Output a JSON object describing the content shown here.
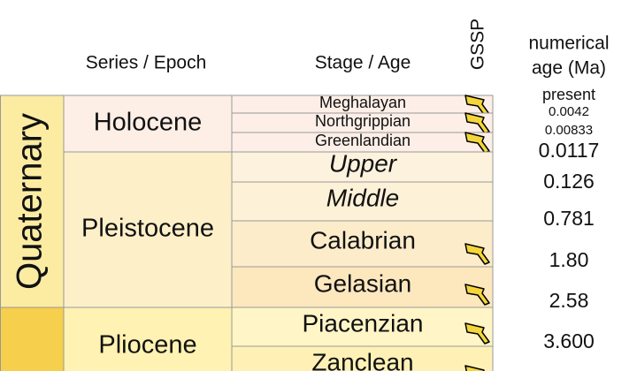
{
  "headers": {
    "series_epoch": "Series / Epoch",
    "stage_age": "Stage / Age",
    "gssp": "GSSP",
    "numerical_age": [
      "numerical",
      "age (Ma)"
    ]
  },
  "periods": [
    "Quaternary"
  ],
  "epochs": [
    "Holocene",
    "Pleistocene",
    "Pliocene"
  ],
  "stages": [
    "Meghalayan",
    "Northgrippian",
    "Greenlandian",
    "Upper",
    "Middle",
    "Calabrian",
    "Gelasian",
    "Piacenzian",
    "Zanclean"
  ],
  "ages": [
    "present",
    "0.0042",
    "0.00833",
    "0.0117",
    "0.126",
    "0.781",
    "1.80",
    "2.58",
    "3.600"
  ]
}
